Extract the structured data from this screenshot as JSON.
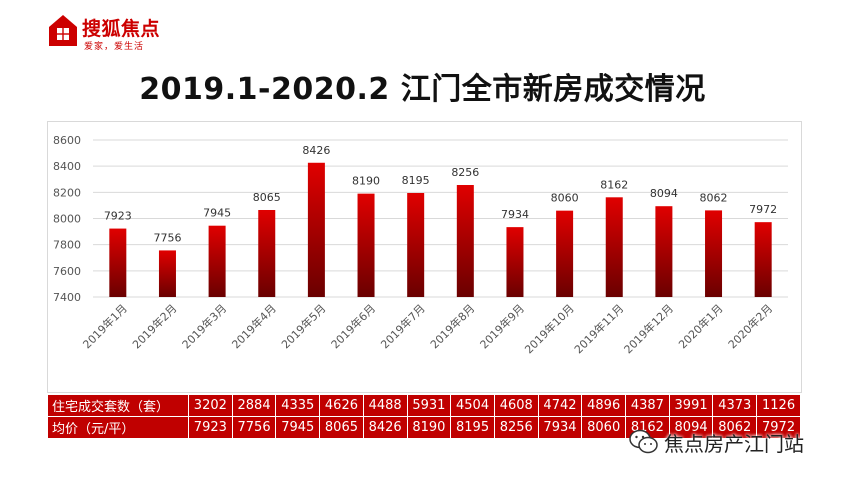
{
  "logo": {
    "brand_a": "搜狐",
    "brand_b": "焦点",
    "slogan": "爱家，爱生活"
  },
  "title": "2019.1-2020.2 江门全市新房成交情况",
  "colors": {
    "bar_top": "#e00000",
    "bar_bottom": "#6a0000",
    "table_bg": "#c00000",
    "brand": "#cc0000"
  },
  "chart_data": {
    "type": "bar",
    "title": "",
    "categories": [
      "2019年1月",
      "2019年2月",
      "2019年3月",
      "2019年4月",
      "2019年5月",
      "2019年6月",
      "2019年7月",
      "2019年8月",
      "2019年9月",
      "2019年10月",
      "2019年11月",
      "2019年12月",
      "2020年1月",
      "2020年2月"
    ],
    "values": [
      7923,
      7756,
      7945,
      8065,
      8426,
      8190,
      8195,
      8256,
      7934,
      8060,
      8162,
      8094,
      8062,
      7972
    ],
    "ylim": [
      7400,
      8600
    ],
    "yticks": [
      "7400",
      "7600",
      "7800",
      "8000",
      "8200",
      "8400",
      "8600"
    ],
    "grid": true,
    "data_labels": true
  },
  "table": {
    "rows": [
      {
        "label": "住宅成交套数（套）",
        "values": [
          "3202",
          "2884",
          "4335",
          "4626",
          "4488",
          "5931",
          "4504",
          "4608",
          "4742",
          "4896",
          "4387",
          "3991",
          "4373",
          "1126"
        ]
      },
      {
        "label": "均价（元/平）",
        "values": [
          "7923",
          "7756",
          "7945",
          "8065",
          "8426",
          "8190",
          "8195",
          "8256",
          "7934",
          "8060",
          "8162",
          "8094",
          "8062",
          "7972"
        ]
      }
    ]
  },
  "watermark": {
    "text": "焦点房产江门站",
    "icon": "wechat-icon"
  }
}
